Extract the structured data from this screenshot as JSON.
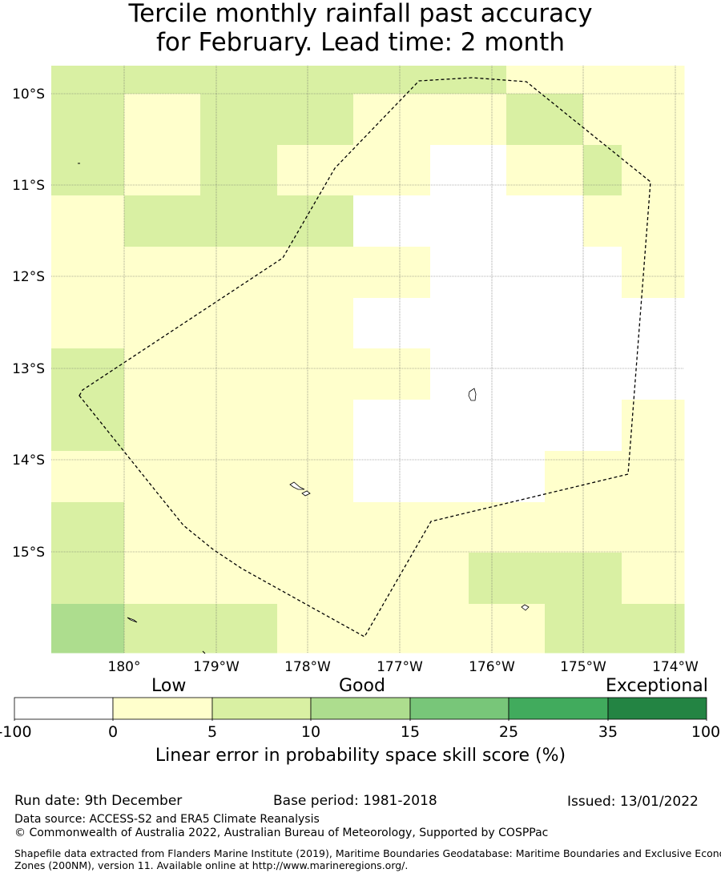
{
  "title_line1": "Tercile monthly rainfall past accuracy",
  "title_line2": "for February. Lead time: 2 month",
  "map": {
    "lon_ticks": [
      "180°",
      "179°W",
      "178°W",
      "177°W",
      "176°W",
      "175°W",
      "174°W"
    ],
    "lat_ticks": [
      "10°S",
      "11°S",
      "12°S",
      "13°S",
      "14°S",
      "15°S"
    ],
    "grid_rows": [
      [
        1,
        1,
        1,
        1,
        1,
        1,
        1,
        1,
        1,
        1,
        1,
        1,
        0,
        0,
        0,
        0
      ],
      [
        1,
        1,
        0,
        0,
        1,
        1,
        1,
        1,
        0,
        0,
        0,
        0,
        1,
        1,
        0,
        0
      ],
      [
        1,
        1,
        0,
        0,
        1,
        1,
        0,
        0,
        0,
        0,
        -1,
        -1,
        0,
        0,
        1,
        0
      ],
      [
        0,
        0,
        1,
        1,
        1,
        1,
        1,
        1,
        -1,
        -1,
        -1,
        -1,
        -1,
        -1,
        0,
        0
      ],
      [
        0,
        0,
        0,
        0,
        0,
        0,
        0,
        0,
        0,
        0,
        -1,
        -1,
        -1,
        -1,
        -1,
        0
      ],
      [
        0,
        0,
        0,
        0,
        0,
        0,
        0,
        0,
        -1,
        -1,
        -1,
        -1,
        -1,
        -1,
        -1,
        -1
      ],
      [
        1,
        1,
        0,
        0,
        0,
        0,
        0,
        0,
        0,
        0,
        -1,
        -1,
        -1,
        -1,
        -1,
        -1
      ],
      [
        1,
        1,
        0,
        0,
        0,
        0,
        0,
        0,
        -1,
        -1,
        -1,
        -1,
        -1,
        -1,
        -1,
        0
      ],
      [
        0,
        0,
        0,
        0,
        0,
        0,
        0,
        0,
        -1,
        -1,
        -1,
        -1,
        -1,
        0,
        0,
        0
      ],
      [
        1,
        1,
        0,
        0,
        0,
        0,
        0,
        0,
        0,
        0,
        0,
        0,
        0,
        0,
        0,
        0
      ],
      [
        1,
        1,
        0,
        0,
        0,
        0,
        0,
        0,
        0,
        0,
        0,
        1,
        1,
        1,
        1,
        0
      ],
      [
        2,
        2,
        1,
        1,
        1,
        1,
        0,
        0,
        0,
        0,
        0,
        0,
        0,
        1,
        1,
        1
      ]
    ]
  },
  "colorbar": {
    "ticks": [
      "-100",
      "0",
      "5",
      "10",
      "15",
      "25",
      "35",
      "100"
    ],
    "colors": [
      "#ffffff",
      "#ffffcc",
      "#d9f0a3",
      "#addd8e",
      "#78c679",
      "#41ab5d",
      "#238443"
    ],
    "label_low": "Low",
    "label_good": "Good",
    "label_exceptional": "Exceptional",
    "title": "Linear error in probability space skill score (%)"
  },
  "footer": {
    "run_date": "Run date: 9th December",
    "base_period": "Base period: 1981-2018",
    "issued": "Issued: 13/01/2022",
    "data_source": "Data source: ACCESS-S2 and ERA5 Climate Reanalysis",
    "copyright": "© Commonwealth of Australia 2022, Australian Bureau of Meteorology, Supported by COSPPac",
    "shapefile_line1": "Shapefile data extracted from Flanders Marine Institute (2019), Maritime Boundaries Geodatabase: Maritime Boundaries and Exclusive Economic",
    "shapefile_line2": "Zones (200NM), version 11. Available online at http://www.marineregions.org/."
  }
}
